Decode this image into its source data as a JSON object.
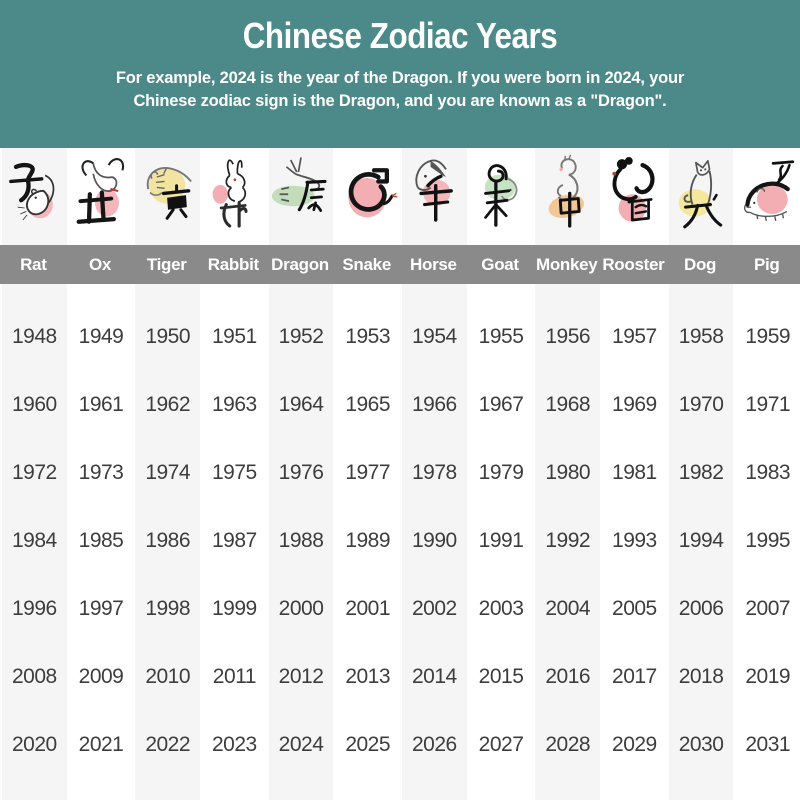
{
  "header": {
    "title": "Chinese Zodiac Years",
    "subtitle_line1": "For example, 2024 is the year of the Dragon. If you were born in 2024, your",
    "subtitle_line2": "Chinese zodiac sign is the Dragon, and you are known as a \"Dragon\"."
  },
  "colors": {
    "header_bg": "#4b8a88",
    "names_bar_bg": "#8a8a8a",
    "alt_column_bg": "#f5f5f5",
    "year_text": "#3d3d3d",
    "label_text": "#ffffff"
  },
  "signs": [
    {
      "name": "Rat",
      "icon": "rat-icon",
      "blob_color": "#f4b6bb",
      "years": [
        1948,
        1960,
        1972,
        1984,
        1996,
        2008,
        2020
      ]
    },
    {
      "name": "Ox",
      "icon": "ox-icon",
      "blob_color": "#f4b6bb",
      "years": [
        1949,
        1961,
        1973,
        1985,
        1997,
        2009,
        2021
      ]
    },
    {
      "name": "Tiger",
      "icon": "tiger-icon",
      "blob_color": "#f2e3a1",
      "years": [
        1950,
        1962,
        1974,
        1986,
        1998,
        2010,
        2022
      ]
    },
    {
      "name": "Rabbit",
      "icon": "rabbit-icon",
      "blob_color": "#f3aeb4",
      "years": [
        1951,
        1963,
        1975,
        1987,
        1999,
        2011,
        2023
      ]
    },
    {
      "name": "Dragon",
      "icon": "dragon-icon",
      "blob_color": "#c3dcba",
      "years": [
        1952,
        1964,
        1976,
        1988,
        2000,
        2012,
        2024
      ]
    },
    {
      "name": "Snake",
      "icon": "snake-icon",
      "blob_color": "#f3aeb4",
      "years": [
        1953,
        1965,
        1977,
        1989,
        2001,
        2013,
        2025
      ]
    },
    {
      "name": "Horse",
      "icon": "horse-icon",
      "blob_color": "#f4b6bb",
      "years": [
        1954,
        1966,
        1978,
        1990,
        2002,
        2014,
        2026
      ]
    },
    {
      "name": "Goat",
      "icon": "goat-icon",
      "blob_color": "#c8e2c4",
      "years": [
        1955,
        1967,
        1979,
        1991,
        2003,
        2015,
        2027
      ]
    },
    {
      "name": "Monkey",
      "icon": "monkey-icon",
      "blob_color": "#f3c795",
      "years": [
        1956,
        1968,
        1980,
        1992,
        2004,
        2016,
        2028
      ]
    },
    {
      "name": "Rooster",
      "icon": "rooster-icon",
      "blob_color": "#f3aeb4",
      "years": [
        1957,
        1969,
        1981,
        1993,
        2005,
        2017,
        2029
      ]
    },
    {
      "name": "Dog",
      "icon": "dog-icon",
      "blob_color": "#f5e79c",
      "years": [
        1958,
        1970,
        1982,
        1994,
        2006,
        2018,
        2030
      ]
    },
    {
      "name": "Pig",
      "icon": "pig-icon",
      "blob_color": "#f3aeb4",
      "years": [
        1959,
        1971,
        1983,
        1995,
        2007,
        2019,
        2031
      ]
    }
  ],
  "chart_data": {
    "type": "table",
    "title": "Chinese Zodiac Years",
    "subtitle": "For example, 2024 is the year of the Dragon. If you were born in 2024, your Chinese zodiac sign is the Dragon, and you are known as a \"Dragon\".",
    "columns": [
      "Rat",
      "Ox",
      "Tiger",
      "Rabbit",
      "Dragon",
      "Snake",
      "Horse",
      "Goat",
      "Monkey",
      "Rooster",
      "Dog",
      "Pig"
    ],
    "rows": [
      [
        1948,
        1949,
        1950,
        1951,
        1952,
        1953,
        1954,
        1955,
        1956,
        1957,
        1958,
        1959
      ],
      [
        1960,
        1961,
        1962,
        1963,
        1964,
        1965,
        1966,
        1967,
        1968,
        1969,
        1970,
        1971
      ],
      [
        1972,
        1973,
        1974,
        1975,
        1976,
        1977,
        1978,
        1979,
        1980,
        1981,
        1982,
        1983
      ],
      [
        1984,
        1985,
        1986,
        1987,
        1988,
        1989,
        1990,
        1991,
        1992,
        1993,
        1994,
        1995
      ],
      [
        1996,
        1997,
        1998,
        1999,
        2000,
        2001,
        2002,
        2003,
        2004,
        2005,
        2006,
        2007
      ],
      [
        2008,
        2009,
        2010,
        2011,
        2012,
        2013,
        2014,
        2015,
        2016,
        2017,
        2018,
        2019
      ],
      [
        2020,
        2021,
        2022,
        2023,
        2024,
        2025,
        2026,
        2027,
        2028,
        2029,
        2030,
        2031
      ]
    ],
    "layout": {
      "grid": "off",
      "alternating_column_shading": true,
      "legend_position": "none"
    }
  }
}
